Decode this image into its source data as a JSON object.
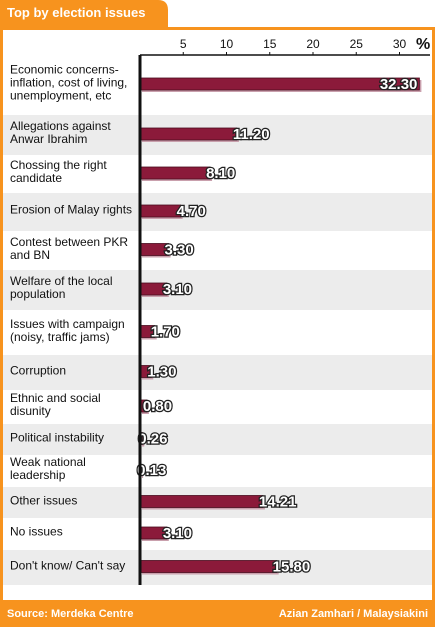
{
  "chart_data": {
    "type": "bar",
    "orientation": "horizontal",
    "title": "Top by election issues",
    "source": "Source: Merdeka Centre",
    "credit": "Azian Zamhari / Malaysiakini",
    "axis_unit": "%",
    "categories": [
      "Economic concerns-inflation, cost of living, unemployment, etc",
      "Allegations against Anwar Ibrahim",
      "Chossing the right candidate",
      "Erosion of Malay rights",
      "Contest between PKR and BN",
      "Welfare of the local population",
      "Issues with campaign (noisy, traffic jams)",
      "Corruption",
      "Ethnic and social disunity",
      "Political instability",
      "Weak national leadership",
      "Other issues",
      "No issues",
      "Don't know/ Can't say"
    ],
    "values": [
      32.3,
      11.2,
      8.1,
      4.7,
      3.3,
      3.1,
      1.7,
      1.3,
      0.8,
      0.26,
      0.13,
      14.21,
      3.1,
      15.8
    ],
    "value_labels": [
      "32.30",
      "11.20",
      "8.10",
      "4.70",
      "3.30",
      "3.10",
      "1.70",
      "1.30",
      "0.80",
      "0.26",
      "0.13",
      "14.21",
      "3.10",
      "15.80"
    ],
    "color": "#8b1a3a",
    "xlim": [
      0,
      33
    ],
    "xticks": [
      5,
      10,
      15,
      20,
      25,
      30
    ]
  }
}
